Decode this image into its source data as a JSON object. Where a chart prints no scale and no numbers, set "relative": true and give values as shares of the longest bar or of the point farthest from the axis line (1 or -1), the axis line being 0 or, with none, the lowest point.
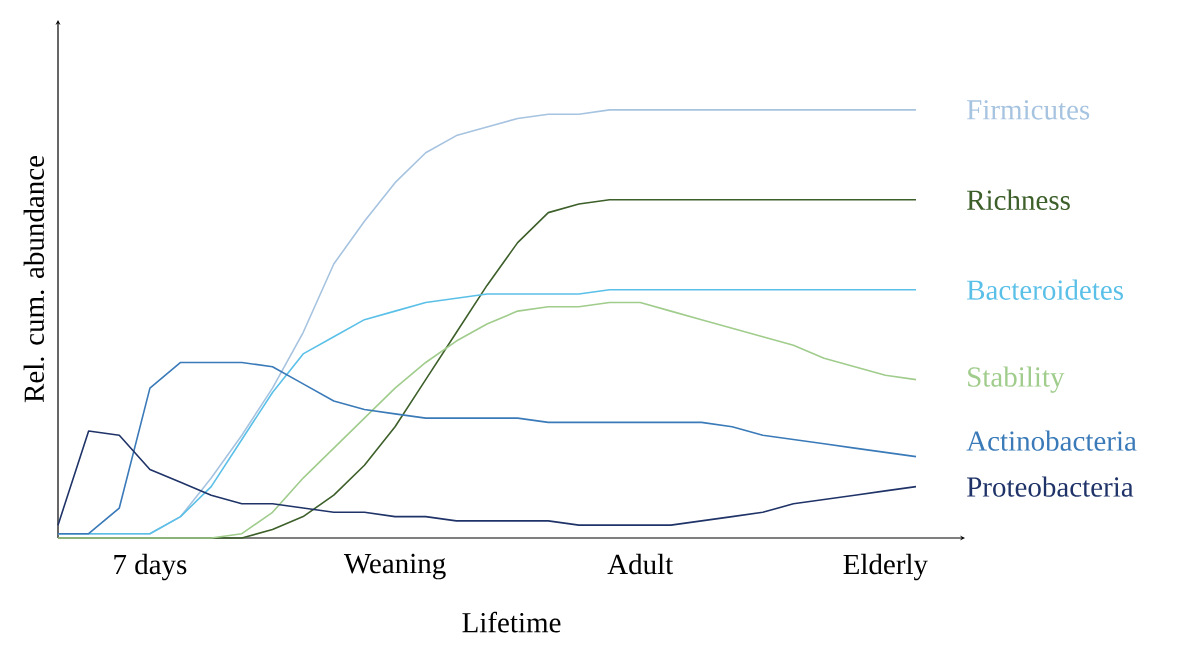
{
  "chart_data": {
    "type": "line",
    "relative": true,
    "xlabel": "Lifetime",
    "ylabel": "Rel. cum. abundance",
    "categories": [
      null,
      null,
      null,
      "7 days",
      null,
      null,
      null,
      null,
      null,
      null,
      null,
      "Weaning",
      null,
      null,
      null,
      null,
      null,
      null,
      null,
      "Adult",
      null,
      null,
      null,
      null,
      null,
      null,
      null,
      "Elderly",
      null
    ],
    "series": [
      {
        "name": "Firmicutes",
        "color": "#a6c3e0",
        "values": [
          0.01,
          0.01,
          0.01,
          0.01,
          0.05,
          0.14,
          0.24,
          0.35,
          0.48,
          0.64,
          0.74,
          0.83,
          0.9,
          0.94,
          0.96,
          0.98,
          0.99,
          0.99,
          1.0,
          1.0,
          1.0,
          1.0,
          1.0,
          1.0,
          1.0,
          1.0,
          1.0,
          1.0,
          1.0
        ]
      },
      {
        "name": "Richness",
        "color": "#3d5f2a",
        "values": [
          0.0,
          0.0,
          0.0,
          0.0,
          0.0,
          0.0,
          0.0,
          0.02,
          0.05,
          0.1,
          0.17,
          0.26,
          0.37,
          0.48,
          0.59,
          0.69,
          0.76,
          0.78,
          0.79,
          0.79,
          0.79,
          0.79,
          0.79,
          0.79,
          0.79,
          0.79,
          0.79,
          0.79,
          0.79
        ]
      },
      {
        "name": "Bacteroidetes",
        "color": "#5bc0e8",
        "values": [
          0.01,
          0.01,
          0.01,
          0.01,
          0.05,
          0.12,
          0.23,
          0.34,
          0.43,
          0.47,
          0.51,
          0.53,
          0.55,
          0.56,
          0.57,
          0.57,
          0.57,
          0.57,
          0.58,
          0.58,
          0.58,
          0.58,
          0.58,
          0.58,
          0.58,
          0.58,
          0.58,
          0.58,
          0.58
        ]
      },
      {
        "name": "Stability",
        "color": "#a0cc8c",
        "values": [
          0.0,
          0.0,
          0.0,
          0.0,
          0.0,
          0.0,
          0.01,
          0.06,
          0.14,
          0.21,
          0.28,
          0.35,
          0.41,
          0.46,
          0.5,
          0.53,
          0.54,
          0.54,
          0.55,
          0.55,
          0.53,
          0.51,
          0.49,
          0.47,
          0.45,
          0.42,
          0.4,
          0.38,
          0.37
        ]
      },
      {
        "name": "Actinobacteria",
        "color": "#3a7ab8",
        "values": [
          0.01,
          0.01,
          0.07,
          0.35,
          0.41,
          0.41,
          0.41,
          0.4,
          0.36,
          0.32,
          0.3,
          0.29,
          0.28,
          0.28,
          0.28,
          0.28,
          0.27,
          0.27,
          0.27,
          0.27,
          0.27,
          0.27,
          0.26,
          0.24,
          0.23,
          0.22,
          0.21,
          0.2,
          0.19
        ]
      },
      {
        "name": "Proteobacteria",
        "color": "#1f3368",
        "values": [
          0.03,
          0.25,
          0.24,
          0.16,
          0.13,
          0.1,
          0.08,
          0.08,
          0.07,
          0.06,
          0.06,
          0.05,
          0.05,
          0.04,
          0.04,
          0.04,
          0.04,
          0.03,
          0.03,
          0.03,
          0.03,
          0.04,
          0.05,
          0.06,
          0.08,
          0.09,
          0.1,
          0.11,
          0.12
        ]
      }
    ]
  }
}
